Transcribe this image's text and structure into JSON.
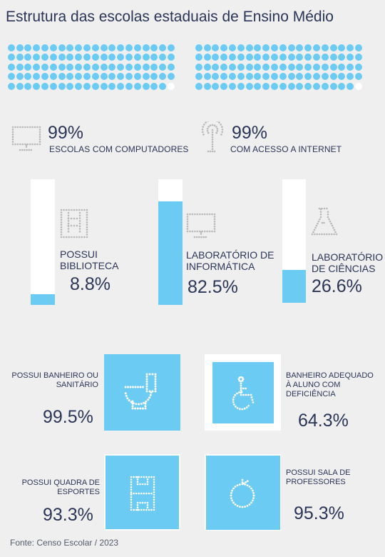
{
  "title": "Estrutura das escolas estaduais de Ensino Médio",
  "colors": {
    "accent": "#6ccbf2",
    "text": "#2b3556",
    "background": "#efefef",
    "empty": "#ffffff",
    "icon": "#b9b9b9"
  },
  "chart_data": [
    {
      "type": "waffle",
      "value": 99,
      "total": 100,
      "label": "99%",
      "caption": "ESCOLAS COM COMPUTADORES",
      "icon": "computer-monitor-icon"
    },
    {
      "type": "waffle",
      "value": 99,
      "total": 100,
      "label": "99%",
      "caption": "COM ACESSO A INTERNET",
      "icon": "antenna-icon"
    },
    {
      "type": "bar",
      "orientation": "vertical",
      "ylim": [
        0,
        100
      ],
      "items": [
        {
          "label": "POSSUI BIBLIOTECA",
          "value": 8.8,
          "display": "8.8%",
          "icon": "bookshelf-icon"
        },
        {
          "label": "LABORATÓRIO DE INFORMÁTICA",
          "value": 82.5,
          "display": "82.5%",
          "icon": "computer-monitor-icon"
        },
        {
          "label": "LABORATÓRIO DE CIÊNCIAS",
          "value": 26.6,
          "display": "26.6%",
          "icon": "flask-icon"
        }
      ]
    },
    {
      "type": "area",
      "shape": "square",
      "items": [
        {
          "label": "POSSUI BANHEIRO OU SANITÁRIO",
          "value": 99.5,
          "display": "99.5%",
          "icon": "toilet-icon"
        },
        {
          "label": "BANHEIRO ADEQUADO À ALUNO COM DEFICIÊNCIA",
          "value": 64.3,
          "display": "64.3%",
          "icon": "wheelchair-icon"
        },
        {
          "label": "POSSUI QUADRA DE ESPORTES",
          "value": 93.3,
          "display": "93.3%",
          "icon": "sports-court-icon"
        },
        {
          "label": "POSSUI SALA DE PROFESSORES",
          "value": 95.3,
          "display": "95.3%",
          "icon": "apple-icon"
        }
      ]
    }
  ],
  "source": "Fonte: Censo Escolar / 2023"
}
